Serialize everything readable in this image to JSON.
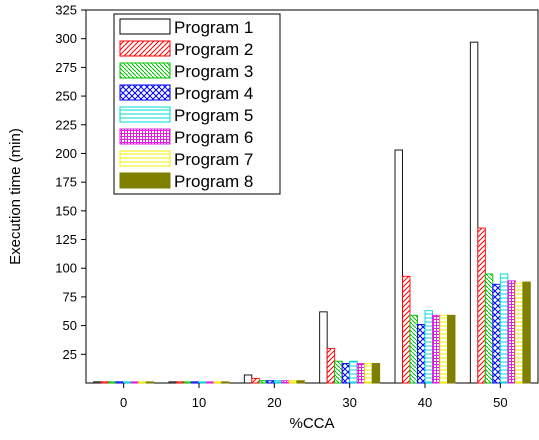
{
  "chart_data": {
    "type": "bar",
    "title": "",
    "xlabel": "%CCA",
    "ylabel": "Execution time (min)",
    "categories": [
      "0",
      "10",
      "20",
      "30",
      "40",
      "50"
    ],
    "ylim": [
      0,
      325
    ],
    "yticks": [
      25,
      50,
      75,
      100,
      125,
      150,
      175,
      200,
      225,
      250,
      275,
      300,
      325
    ],
    "grid": false,
    "legend_position": "top-left",
    "series": [
      {
        "name": "Program 1",
        "values": [
          1,
          1,
          7,
          62,
          203,
          297
        ],
        "color": "#000000",
        "pattern": "empty"
      },
      {
        "name": "Program 2",
        "values": [
          1,
          1,
          4,
          30,
          93,
          135
        ],
        "color": "#ff0000",
        "pattern": "diagonal-up"
      },
      {
        "name": "Program 3",
        "values": [
          1,
          1,
          2,
          19,
          59,
          95
        ],
        "color": "#00c000",
        "pattern": "diagonal-down"
      },
      {
        "name": "Program 4",
        "values": [
          1,
          1,
          2,
          17,
          51,
          86
        ],
        "color": "#0000ff",
        "pattern": "crosshatch"
      },
      {
        "name": "Program 5",
        "values": [
          1,
          1,
          2,
          19,
          63,
          95
        ],
        "color": "#00d8d8",
        "pattern": "horizontal"
      },
      {
        "name": "Program 6",
        "values": [
          1,
          1,
          2,
          17,
          59,
          89
        ],
        "color": "#e020e0",
        "pattern": "grid"
      },
      {
        "name": "Program 7",
        "values": [
          1,
          1,
          2,
          17,
          59,
          87
        ],
        "color": "#f0f000",
        "pattern": "horizontal"
      },
      {
        "name": "Program 8",
        "values": [
          1,
          1,
          2,
          17,
          59,
          88
        ],
        "color": "#7f7f00",
        "pattern": "solid"
      }
    ]
  }
}
